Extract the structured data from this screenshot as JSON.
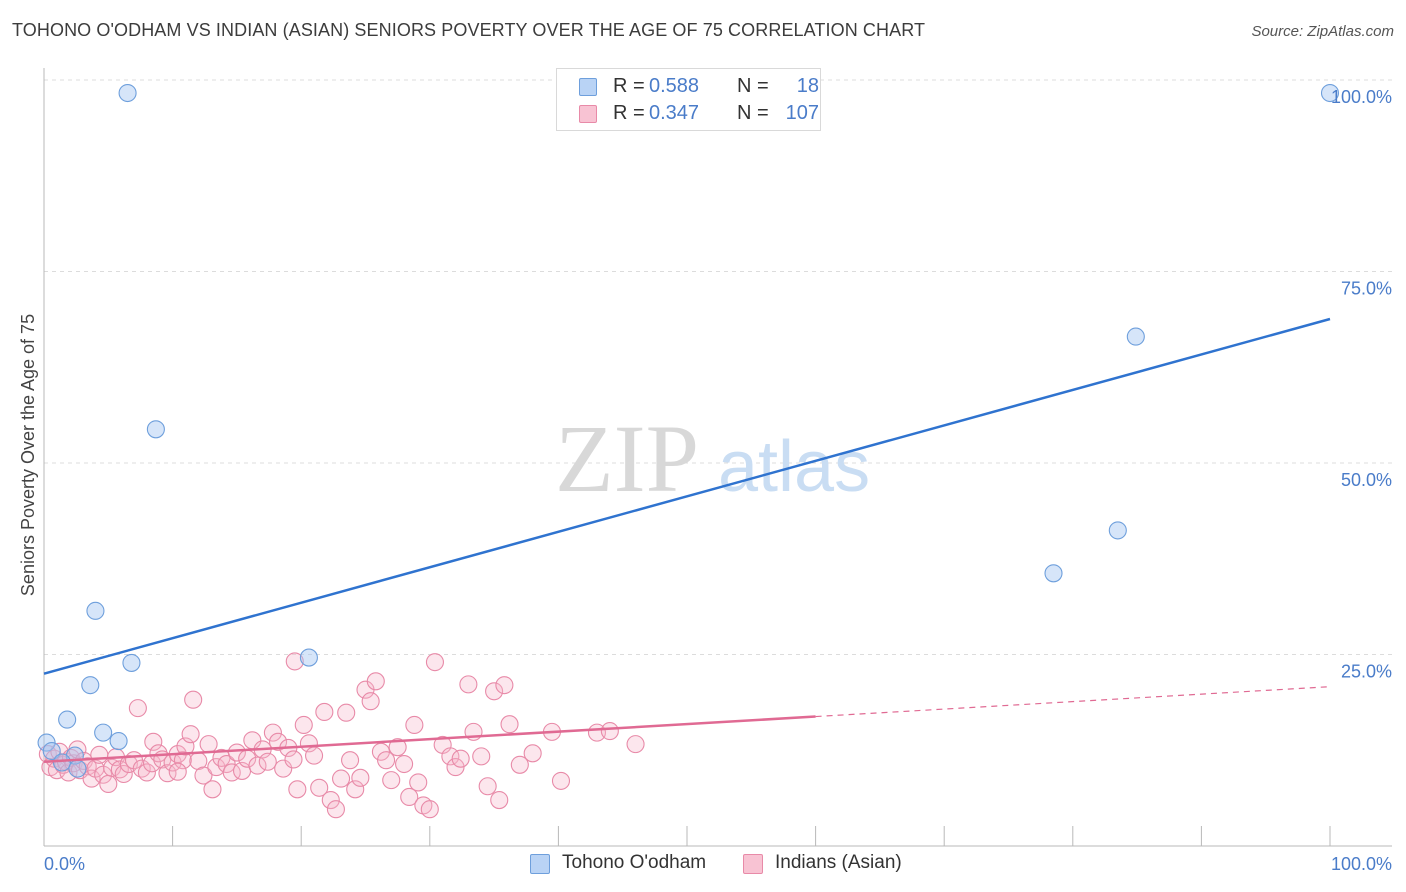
{
  "title": "TOHONO O'ODHAM VS INDIAN (ASIAN) SENIORS POVERTY OVER THE AGE OF 75 CORRELATION CHART",
  "source": "Source: ZipAtlas.com",
  "watermark": {
    "zip": "ZIP",
    "atlas": "atlas"
  },
  "legend": {
    "r_label": "R =",
    "n_label": "N =",
    "rows": [
      {
        "r": "0.588",
        "n": "18",
        "fill": "#b9d3f5",
        "stroke": "#6e9fdc"
      },
      {
        "r": "0.347",
        "n": "107",
        "fill": "#f8c3d3",
        "stroke": "#e88aa8"
      }
    ]
  },
  "bottom_legend": [
    {
      "label": "Tohono O'odham",
      "fill": "#b9d3f5",
      "stroke": "#6e9fdc"
    },
    {
      "label": "Indians (Asian)",
      "fill": "#f8c3d3",
      "stroke": "#e88aa8"
    }
  ],
  "colors": {
    "blue_line": "#2f73cf",
    "pink_line": "#e06a93",
    "blue_point_fill": "rgba(164,198,242,0.45)",
    "blue_point_stroke": "#6e9fdc",
    "pink_point_fill": "rgba(246,182,202,0.35)",
    "pink_point_stroke": "#e88aa8",
    "tick_label": "#4a7cc9",
    "grid": "#dcdcdc"
  },
  "chart_data": {
    "type": "scatter",
    "ylabel": "Seniors Poverty Over the Age of 75",
    "xlim": [
      0,
      100
    ],
    "ylim": [
      0,
      100
    ],
    "x_tick_labels": [
      {
        "value": 0,
        "label": "0.0%"
      },
      {
        "value": 100,
        "label": "100.0%"
      }
    ],
    "y_tick_labels": [
      {
        "value": 25,
        "label": "25.0%"
      },
      {
        "value": 50,
        "label": "50.0%"
      },
      {
        "value": 75,
        "label": "75.0%"
      },
      {
        "value": 100,
        "label": "100.0%"
      }
    ],
    "grid": "horizontal dashed",
    "legend_position": "top-center",
    "series": [
      {
        "name": "Tohono O'odham",
        "r": 0.588,
        "n": 18,
        "points": [
          [
            6.5,
            98.3
          ],
          [
            8.7,
            54.4
          ],
          [
            4.0,
            30.7
          ],
          [
            6.8,
            23.9
          ],
          [
            20.6,
            24.6
          ],
          [
            3.6,
            21.0
          ],
          [
            1.8,
            16.5
          ],
          [
            4.6,
            14.8
          ],
          [
            5.8,
            13.7
          ],
          [
            0.2,
            13.5
          ],
          [
            0.6,
            12.4
          ],
          [
            2.4,
            11.8
          ],
          [
            1.4,
            10.9
          ],
          [
            2.6,
            10.1
          ],
          [
            84.9,
            66.5
          ],
          [
            83.5,
            41.2
          ],
          [
            78.5,
            35.6
          ],
          [
            100,
            98.3
          ]
        ],
        "trend": {
          "x": [
            0,
            100
          ],
          "y": [
            22.5,
            68.8
          ],
          "style": "solid"
        }
      },
      {
        "name": "Indians (Asian)",
        "r": 0.347,
        "n": 107,
        "points": [
          [
            0.3,
            12.0
          ],
          [
            0.5,
            10.3
          ],
          [
            0.8,
            11.4
          ],
          [
            1.0,
            9.9
          ],
          [
            1.2,
            12.3
          ],
          [
            1.5,
            10.6
          ],
          [
            1.7,
            11.0
          ],
          [
            1.9,
            9.6
          ],
          [
            2.1,
            11.5
          ],
          [
            2.3,
            10.8
          ],
          [
            2.6,
            12.6
          ],
          [
            2.8,
            9.9
          ],
          [
            3.1,
            11.1
          ],
          [
            3.4,
            10.4
          ],
          [
            3.7,
            8.8
          ],
          [
            4.0,
            10.1
          ],
          [
            4.3,
            11.9
          ],
          [
            4.6,
            9.3
          ],
          [
            5.0,
            8.1
          ],
          [
            5.3,
            10.2
          ],
          [
            5.6,
            11.6
          ],
          [
            5.9,
            10.0
          ],
          [
            6.2,
            9.4
          ],
          [
            6.6,
            10.7
          ],
          [
            7.0,
            11.2
          ],
          [
            7.3,
            18.0
          ],
          [
            7.6,
            10.1
          ],
          [
            8.0,
            9.6
          ],
          [
            8.4,
            10.8
          ],
          [
            8.5,
            13.6
          ],
          [
            8.9,
            12.1
          ],
          [
            9.2,
            11.3
          ],
          [
            9.6,
            9.5
          ],
          [
            10.0,
            10.9
          ],
          [
            10.4,
            12.0
          ],
          [
            10.8,
            11.2
          ],
          [
            10.4,
            9.7
          ],
          [
            11.0,
            13.0
          ],
          [
            11.4,
            14.6
          ],
          [
            11.6,
            19.1
          ],
          [
            12.0,
            11.1
          ],
          [
            12.4,
            9.2
          ],
          [
            12.8,
            13.3
          ],
          [
            13.1,
            7.4
          ],
          [
            13.4,
            10.3
          ],
          [
            13.8,
            11.5
          ],
          [
            14.2,
            10.7
          ],
          [
            14.6,
            9.6
          ],
          [
            15.0,
            12.2
          ],
          [
            15.4,
            9.8
          ],
          [
            15.8,
            11.4
          ],
          [
            16.2,
            13.8
          ],
          [
            16.6,
            10.5
          ],
          [
            17.0,
            12.6
          ],
          [
            17.4,
            11.0
          ],
          [
            17.8,
            14.8
          ],
          [
            18.2,
            13.6
          ],
          [
            18.6,
            10.1
          ],
          [
            19.0,
            12.8
          ],
          [
            19.4,
            11.3
          ],
          [
            19.5,
            24.1
          ],
          [
            19.7,
            7.4
          ],
          [
            20.2,
            15.8
          ],
          [
            20.6,
            13.4
          ],
          [
            21.0,
            11.8
          ],
          [
            21.4,
            7.6
          ],
          [
            21.8,
            17.5
          ],
          [
            22.3,
            6.0
          ],
          [
            22.7,
            4.8
          ],
          [
            23.1,
            8.8
          ],
          [
            23.5,
            17.4
          ],
          [
            23.8,
            11.2
          ],
          [
            24.2,
            7.4
          ],
          [
            24.6,
            8.9
          ],
          [
            25.0,
            20.4
          ],
          [
            25.4,
            18.9
          ],
          [
            25.8,
            21.5
          ],
          [
            26.2,
            12.3
          ],
          [
            26.6,
            11.2
          ],
          [
            27.0,
            8.6
          ],
          [
            27.5,
            12.9
          ],
          [
            28.0,
            10.7
          ],
          [
            28.4,
            6.4
          ],
          [
            28.8,
            15.8
          ],
          [
            29.1,
            8.3
          ],
          [
            29.5,
            5.3
          ],
          [
            30.0,
            4.8
          ],
          [
            30.4,
            24.0
          ],
          [
            31.0,
            13.2
          ],
          [
            31.6,
            11.7
          ],
          [
            32.0,
            10.3
          ],
          [
            32.4,
            11.4
          ],
          [
            33.0,
            21.1
          ],
          [
            33.4,
            14.9
          ],
          [
            34.0,
            11.7
          ],
          [
            34.5,
            7.8
          ],
          [
            35.0,
            20.2
          ],
          [
            35.4,
            6.0
          ],
          [
            35.8,
            21.0
          ],
          [
            36.2,
            15.9
          ],
          [
            37.0,
            10.6
          ],
          [
            38.0,
            12.1
          ],
          [
            39.5,
            14.9
          ],
          [
            40.2,
            8.5
          ],
          [
            43.0,
            14.8
          ],
          [
            44.0,
            15.0
          ],
          [
            46.0,
            13.3
          ]
        ],
        "trend": {
          "x": [
            0,
            60,
            100
          ],
          "y": [
            11.0,
            16.9,
            20.8
          ],
          "style": "solid to 60, dashed after"
        }
      }
    ]
  }
}
